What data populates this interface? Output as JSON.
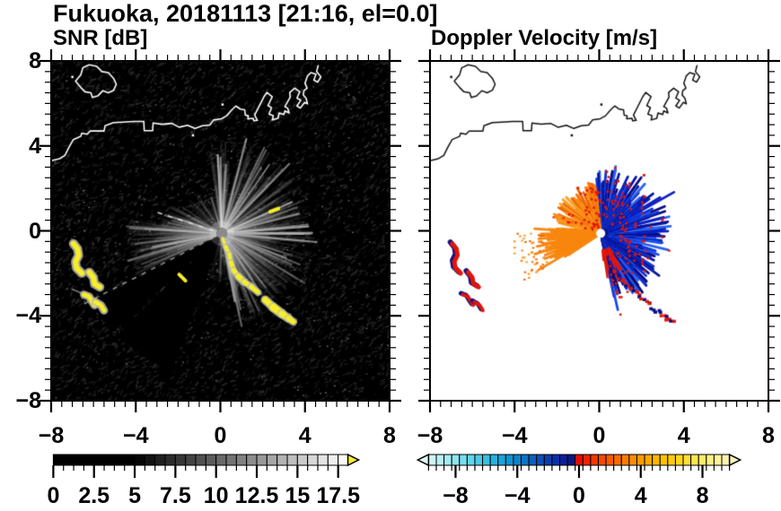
{
  "title": "Fukuoka, 20181113 [21:16, el=0.0]",
  "panels": [
    {
      "title": "SNR [dB]",
      "background": "#000000",
      "coast_color": "#ffffff",
      "x_tick_labels": [
        "−8",
        "−4",
        "0",
        "4",
        "8"
      ],
      "y_tick_labels": [
        "8",
        "4",
        "0",
        "−4",
        "−8"
      ],
      "colorbar": {
        "range": [
          0,
          18
        ],
        "tick_labels": [
          "0",
          "2.5",
          "5",
          "7.5",
          "10",
          "12.5",
          "15",
          "17.5"
        ],
        "tick_values": [
          0,
          2.5,
          5,
          7.5,
          10,
          12.5,
          15,
          17.5
        ],
        "segment_step": 0.625,
        "colormap": "grayscale black-to-white, solid black below 5 dB",
        "over_arrow_color": "#f6ee28"
      }
    },
    {
      "title": "Doppler Velocity [m/s]",
      "background": "#ffffff",
      "coast_color": "#111111",
      "x_tick_labels": [
        "−8",
        "−4",
        "0",
        "4",
        "8"
      ],
      "colorbar": {
        "range": [
          -10,
          10
        ],
        "tick_labels": [
          "−8",
          "−4",
          "0",
          "4",
          "8"
        ],
        "tick_values": [
          -8,
          -4,
          0,
          4,
          8
        ],
        "segment_step": 0.5,
        "colormap": "pale cyan→navy for negative, red→cream yellow for positive",
        "neg_stops": [
          "#dff8f8",
          "#b5f0f2",
          "#84e2ee",
          "#54cde8",
          "#27b2dd",
          "#0b93cf",
          "#0c6cc0",
          "#0d44b2",
          "#0a23a0",
          "#060c66"
        ],
        "pos_stops": [
          "#e60f00",
          "#f13b00",
          "#f86300",
          "#fc8700",
          "#ffa700",
          "#ffc300",
          "#ffda1c",
          "#ffe95c",
          "#fff399",
          "#f8f2c2"
        ]
      }
    }
  ],
  "chart_data": [
    {
      "type": "heatmap",
      "title": "SNR [dB]",
      "xlim": [
        -8,
        8
      ],
      "ylim": [
        -8,
        8
      ],
      "x_ticks": [
        -8,
        -4,
        0,
        4,
        8
      ],
      "y_ticks": [
        -8,
        -4,
        0,
        4,
        8
      ],
      "minor_tick_step": 0.5,
      "legend_position": "bottom colorbar",
      "grid": false,
      "description": "Lidar/radar PPI scan: black noise floor (0-5 dB) with gray radial beam streaks from the radar at the center, yellow over-scale (>18 dB) echoes: a ship-wake trail running southeast from the center and hard-target arcs to the west; white coastline of Hakata Bay across the top."
    },
    {
      "type": "heatmap",
      "title": "Doppler Velocity [m/s]",
      "xlim": [
        -8,
        8
      ],
      "ylim": [
        -8,
        8
      ],
      "x_ticks": [
        -8,
        -4,
        0,
        4,
        8
      ],
      "y_ticks": [
        -8,
        -4,
        0,
        4,
        8
      ],
      "minor_tick_step": 0.5,
      "legend_position": "bottom colorbar",
      "grid": false,
      "description": "Same scan colored by Doppler velocity: negative (blue/navy) fan east-northeast of the radar, positive (orange) fans to the northwest and a bright west-southwest beam, red/navy speckles along the ship-wake trail and on the western hard targets; black coastline."
    }
  ],
  "geometry": {
    "radar_center": [
      0.07,
      -0.12
    ],
    "snr_sectors": [
      {
        "a0": -80,
        "a1": 98,
        "n": 300,
        "ns": 26,
        "rmin": 1.2,
        "rmax": 4.4,
        "bright": 1.0
      },
      {
        "a0": 98,
        "a1": 148,
        "n": 45,
        "ns": 3,
        "rmin": 0.8,
        "rmax": 2.2,
        "bright": 0.5
      },
      {
        "a0": 150,
        "a1": 172,
        "n": 60,
        "ns": 4,
        "rmin": 1.2,
        "rmax": 3.0,
        "bright": 0.6
      },
      {
        "a0": 172,
        "a1": 206,
        "n": 150,
        "ns": 10,
        "rmin": 1.8,
        "rmax": 4.5,
        "bright": 0.8
      },
      {
        "a0": 252,
        "a1": 282,
        "n": 40,
        "ns": 3,
        "rmin": 0.8,
        "rmax": 2.4,
        "bright": 0.4
      },
      {
        "a0": 282,
        "a1": 345,
        "n": 150,
        "ns": 8,
        "rmin": 1.2,
        "rmax": 3.5,
        "bright": 0.55
      }
    ],
    "black_wedges": [
      [
        208,
        222
      ],
      [
        224,
        250
      ]
    ],
    "dashed_rays": [
      {
        "az": 162,
        "r0": 0.45,
        "r1": 3.2,
        "color": "#dddddd"
      },
      {
        "az": 207,
        "r0": 0.5,
        "r1": 7.5,
        "color": "#9a9a9a"
      }
    ],
    "vel_sectors": [
      {
        "a0": -78,
        "a1": 96,
        "kind": "neg",
        "rmin": 0.9,
        "rmax": 3.3,
        "specks": 120
      },
      {
        "a0": 96,
        "a1": 168,
        "kind": "pos",
        "rmin": 0.5,
        "rmax": 2.4,
        "specks": 45
      },
      {
        "a0": 172,
        "a1": 214,
        "kind": "pos_beam",
        "rmin": 1.2,
        "rmax": 3.5,
        "specks": 0
      }
    ],
    "vel_dotted_ray": {
      "az": 160,
      "r0": 0.5,
      "r1": 2.6
    },
    "wake": [
      [
        0.12,
        -0.38
      ],
      [
        0.25,
        -0.75
      ],
      [
        0.42,
        -1.1
      ],
      [
        0.5,
        -1.5
      ],
      [
        0.62,
        -1.85
      ],
      [
        0.85,
        -2.15
      ],
      [
        1.12,
        -2.4
      ],
      [
        1.45,
        -2.62
      ],
      [
        1.78,
        -2.9
      ],
      [
        2.12,
        -3.25
      ],
      [
        2.5,
        -3.6
      ],
      [
        2.9,
        -3.9
      ],
      [
        3.22,
        -4.12
      ],
      [
        3.45,
        -4.28
      ]
    ],
    "wake_widths": [
      3,
      4,
      4,
      5,
      5,
      6,
      5,
      5,
      6,
      7,
      8,
      7,
      6
    ],
    "wake_gap_segment": 8,
    "yellow_dashes": [
      [
        [
          2.35,
          0.9
        ],
        [
          2.75,
          1.05
        ]
      ],
      [
        [
          -1.95,
          -2.05
        ],
        [
          -1.65,
          -2.35
        ]
      ]
    ],
    "west_blobs": [
      {
        "pts": [
          [
            -6.95,
            -0.6
          ],
          [
            -6.75,
            -0.85
          ],
          [
            -6.7,
            -1.15
          ],
          [
            -6.85,
            -1.45
          ],
          [
            -6.8,
            -1.75
          ],
          [
            -6.55,
            -2.0
          ]
        ],
        "w": 6
      },
      {
        "pts": [
          [
            -6.2,
            -1.95
          ],
          [
            -6.0,
            -2.2
          ],
          [
            -5.95,
            -2.5
          ],
          [
            -5.7,
            -2.65
          ]
        ],
        "w": 6
      },
      {
        "pts": [
          [
            -6.45,
            -3.0
          ],
          [
            -6.2,
            -3.1
          ],
          [
            -6.05,
            -3.35
          ],
          [
            -5.95,
            -3.5
          ]
        ],
        "w": 5
      },
      {
        "pts": [
          [
            -5.9,
            -3.35
          ],
          [
            -5.65,
            -3.5
          ],
          [
            -5.5,
            -3.75
          ]
        ],
        "w": 5
      }
    ],
    "gray_dash": [
      [
        -7.0,
        -2.75
      ],
      [
        -6.05,
        -3.15
      ]
    ],
    "coastline": [
      [
        -8,
        3.3
      ],
      [
        -7.6,
        3.4
      ],
      [
        -7.35,
        3.55
      ],
      [
        -7.15,
        3.95
      ],
      [
        -6.95,
        4.3
      ],
      [
        -6.6,
        4.45
      ],
      [
        -6.55,
        4.6
      ],
      [
        -6.3,
        4.55
      ],
      [
        -6.15,
        4.7
      ],
      [
        -5.5,
        4.7
      ],
      [
        -5.45,
        4.95
      ],
      [
        -5.05,
        5.1
      ],
      [
        -4.6,
        5.12
      ],
      [
        -4.1,
        5.15
      ],
      [
        -3.62,
        5.15
      ],
      [
        -3.6,
        4.72
      ],
      [
        -3.2,
        4.72
      ],
      [
        -3.18,
        5.08
      ],
      [
        -2.75,
        5.02
      ],
      [
        -2.3,
        5.06
      ],
      [
        -1.95,
        4.88
      ],
      [
        -1.55,
        4.97
      ],
      [
        -1.2,
        4.82
      ],
      [
        -0.85,
        4.95
      ],
      [
        -0.5,
        4.98
      ],
      [
        -0.32,
        5.22
      ],
      [
        0.05,
        5.28
      ],
      [
        0.3,
        5.42
      ],
      [
        0.52,
        5.68
      ],
      [
        0.73,
        5.88
      ],
      [
        0.95,
        5.73
      ],
      [
        1.15,
        5.7
      ],
      [
        1.18,
        5.45
      ],
      [
        1.32,
        5.42
      ],
      [
        1.3,
        5.28
      ],
      [
        1.55,
        5.3
      ],
      [
        1.58,
        5.18
      ],
      [
        1.75,
        5.2
      ],
      [
        1.62,
        5.45
      ],
      [
        2.05,
        6.3
      ],
      [
        2.2,
        6.52
      ],
      [
        2.45,
        6.32
      ],
      [
        2.25,
        5.9
      ],
      [
        2.42,
        5.8
      ],
      [
        2.3,
        5.5
      ],
      [
        2.5,
        5.42
      ],
      [
        2.45,
        5.22
      ],
      [
        2.72,
        5.3
      ],
      [
        2.78,
        5.55
      ],
      [
        3.0,
        5.48
      ],
      [
        3.05,
        5.65
      ],
      [
        3.25,
        5.55
      ],
      [
        3.18,
        5.78
      ],
      [
        3.05,
        5.85
      ],
      [
        3.3,
        6.3
      ],
      [
        3.28,
        6.52
      ],
      [
        3.52,
        6.72
      ],
      [
        3.75,
        6.55
      ],
      [
        3.62,
        6.25
      ],
      [
        3.8,
        6.15
      ],
      [
        3.62,
        5.88
      ],
      [
        3.78,
        5.78
      ],
      [
        3.98,
        6.05
      ],
      [
        4.12,
        5.98
      ],
      [
        4.05,
        6.25
      ],
      [
        3.92,
        6.4
      ],
      [
        3.95,
        6.6
      ],
      [
        4.1,
        6.72
      ],
      [
        4.0,
        6.95
      ],
      [
        4.12,
        7.3
      ],
      [
        4.28,
        7.45
      ],
      [
        4.52,
        7.38
      ],
      [
        4.42,
        7.1
      ],
      [
        4.6,
        7.0
      ],
      [
        4.75,
        7.25
      ],
      [
        4.55,
        7.5
      ],
      [
        4.62,
        7.78
      ]
    ],
    "island": [
      [
        -6.85,
        7.05
      ],
      [
        -6.6,
        7.35
      ],
      [
        -6.5,
        7.68
      ],
      [
        -6.2,
        7.82
      ],
      [
        -5.85,
        7.75
      ],
      [
        -5.6,
        7.5
      ],
      [
        -5.3,
        7.45
      ],
      [
        -5.05,
        7.18
      ],
      [
        -4.92,
        6.9
      ],
      [
        -5.05,
        6.62
      ],
      [
        -5.3,
        6.5
      ],
      [
        -5.55,
        6.6
      ],
      [
        -5.8,
        6.35
      ],
      [
        -6.05,
        6.28
      ],
      [
        -6.12,
        6.5
      ],
      [
        -6.4,
        6.55
      ],
      [
        -6.6,
        6.75
      ],
      [
        -6.85,
        7.05
      ]
    ],
    "islets": [
      [
        -7.05,
        7.3
      ],
      [
        0.05,
        6.0
      ],
      [
        -1.35,
        4.55
      ]
    ]
  },
  "palette": {
    "yellow": "#f6ee28",
    "yellow_fringe": "#b9b9b9",
    "red": "#e31507",
    "navy": "#0a1286",
    "blue_shades": [
      "#0a12a0",
      "#0b1fc0",
      "#0e31d8",
      "#1648e8",
      "#070b7e",
      "#2a63ef"
    ],
    "orange_shades": [
      "#f5790c",
      "#fb8d15",
      "#ed6806",
      "#fda026"
    ],
    "beam_orange": "#f8870f",
    "center_gray": "#8a8a8a"
  }
}
